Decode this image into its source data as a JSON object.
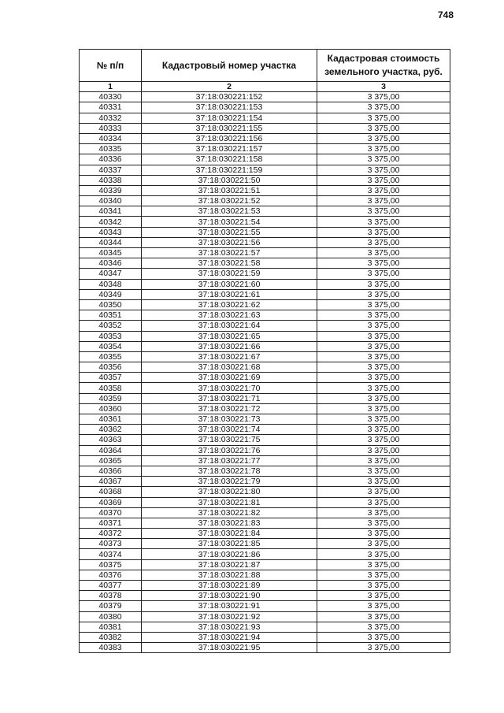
{
  "page_number": "748",
  "table": {
    "headers": [
      "№ п/п",
      "Кадастровый номер участка",
      "Кадастровая стоимость земельного участка, руб."
    ],
    "column_numbers": [
      "1",
      "2",
      "3"
    ],
    "rows": [
      [
        "40330",
        "37:18:030221:152",
        "3 375,00"
      ],
      [
        "40331",
        "37:18:030221:153",
        "3 375,00"
      ],
      [
        "40332",
        "37:18:030221:154",
        "3 375,00"
      ],
      [
        "40333",
        "37:18:030221:155",
        "3 375,00"
      ],
      [
        "40334",
        "37:18:030221:156",
        "3 375,00"
      ],
      [
        "40335",
        "37:18:030221:157",
        "3 375,00"
      ],
      [
        "40336",
        "37:18:030221:158",
        "3 375,00"
      ],
      [
        "40337",
        "37:18:030221:159",
        "3 375,00"
      ],
      [
        "40338",
        "37:18:030221:50",
        "3 375,00"
      ],
      [
        "40339",
        "37:18:030221:51",
        "3 375,00"
      ],
      [
        "40340",
        "37:18:030221:52",
        "3 375,00"
      ],
      [
        "40341",
        "37:18:030221:53",
        "3 375,00"
      ],
      [
        "40342",
        "37:18:030221:54",
        "3 375,00"
      ],
      [
        "40343",
        "37:18:030221:55",
        "3 375,00"
      ],
      [
        "40344",
        "37:18:030221:56",
        "3 375,00"
      ],
      [
        "40345",
        "37:18:030221:57",
        "3 375,00"
      ],
      [
        "40346",
        "37:18:030221:58",
        "3 375,00"
      ],
      [
        "40347",
        "37:18:030221:59",
        "3 375,00"
      ],
      [
        "40348",
        "37:18:030221:60",
        "3 375,00"
      ],
      [
        "40349",
        "37:18:030221:61",
        "3 375,00"
      ],
      [
        "40350",
        "37:18:030221:62",
        "3 375,00"
      ],
      [
        "40351",
        "37:18:030221:63",
        "3 375,00"
      ],
      [
        "40352",
        "37:18:030221:64",
        "3 375,00"
      ],
      [
        "40353",
        "37:18:030221:65",
        "3 375,00"
      ],
      [
        "40354",
        "37:18:030221:66",
        "3 375,00"
      ],
      [
        "40355",
        "37:18:030221:67",
        "3 375,00"
      ],
      [
        "40356",
        "37:18:030221:68",
        "3 375,00"
      ],
      [
        "40357",
        "37:18:030221:69",
        "3 375,00"
      ],
      [
        "40358",
        "37:18:030221:70",
        "3 375,00"
      ],
      [
        "40359",
        "37:18:030221:71",
        "3 375,00"
      ],
      [
        "40360",
        "37:18:030221:72",
        "3 375,00"
      ],
      [
        "40361",
        "37:18:030221:73",
        "3 375,00"
      ],
      [
        "40362",
        "37:18:030221:74",
        "3 375,00"
      ],
      [
        "40363",
        "37:18:030221:75",
        "3 375,00"
      ],
      [
        "40364",
        "37:18:030221:76",
        "3 375,00"
      ],
      [
        "40365",
        "37:18:030221:77",
        "3 375,00"
      ],
      [
        "40366",
        "37:18:030221:78",
        "3 375,00"
      ],
      [
        "40367",
        "37:18:030221:79",
        "3 375,00"
      ],
      [
        "40368",
        "37:18:030221:80",
        "3 375,00"
      ],
      [
        "40369",
        "37:18:030221:81",
        "3 375,00"
      ],
      [
        "40370",
        "37:18:030221:82",
        "3 375,00"
      ],
      [
        "40371",
        "37:18:030221:83",
        "3 375,00"
      ],
      [
        "40372",
        "37:18:030221:84",
        "3 375,00"
      ],
      [
        "40373",
        "37:18:030221:85",
        "3 375,00"
      ],
      [
        "40374",
        "37:18:030221:86",
        "3 375,00"
      ],
      [
        "40375",
        "37:18:030221:87",
        "3 375,00"
      ],
      [
        "40376",
        "37:18:030221:88",
        "3 375,00"
      ],
      [
        "40377",
        "37:18:030221:89",
        "3 375,00"
      ],
      [
        "40378",
        "37:18:030221:90",
        "3 375,00"
      ],
      [
        "40379",
        "37:18:030221:91",
        "3 375,00"
      ],
      [
        "40380",
        "37:18:030221:92",
        "3 375,00"
      ],
      [
        "40381",
        "37:18:030221:93",
        "3 375,00"
      ],
      [
        "40382",
        "37:18:030221:94",
        "3 375,00"
      ],
      [
        "40383",
        "37:18:030221:95",
        "3 375,00"
      ]
    ]
  }
}
